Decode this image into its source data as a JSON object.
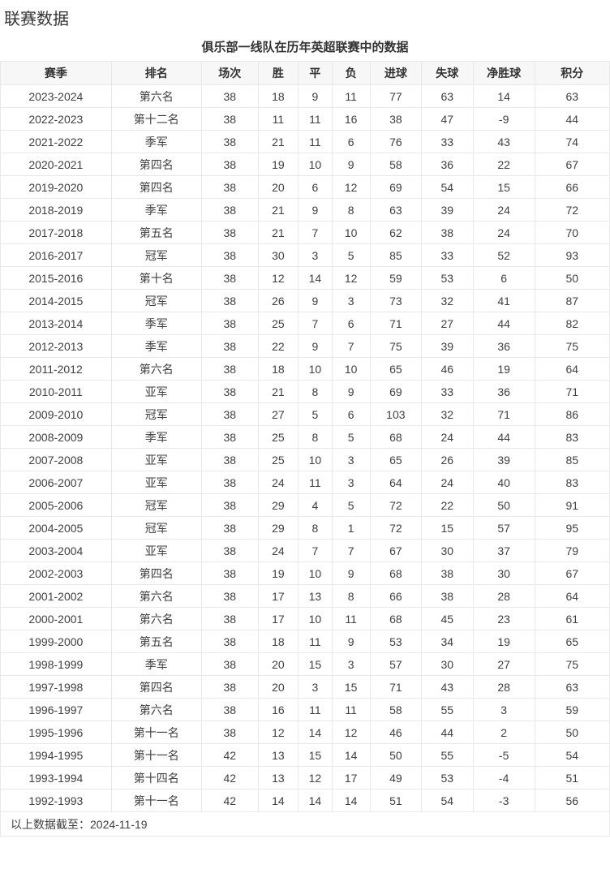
{
  "page": {
    "title": "联赛数据"
  },
  "table": {
    "caption": "俱乐部一线队在历年英超联赛中的数据",
    "columns": [
      "赛季",
      "排名",
      "场次",
      "胜",
      "平",
      "负",
      "进球",
      "失球",
      "净胜球",
      "积分"
    ],
    "rows": [
      [
        "2023-2024",
        "第六名",
        "38",
        "18",
        "9",
        "11",
        "77",
        "63",
        "14",
        "63"
      ],
      [
        "2022-2023",
        "第十二名",
        "38",
        "11",
        "11",
        "16",
        "38",
        "47",
        "-9",
        "44"
      ],
      [
        "2021-2022",
        "季军",
        "38",
        "21",
        "11",
        "6",
        "76",
        "33",
        "43",
        "74"
      ],
      [
        "2020-2021",
        "第四名",
        "38",
        "19",
        "10",
        "9",
        "58",
        "36",
        "22",
        "67"
      ],
      [
        "2019-2020",
        "第四名",
        "38",
        "20",
        "6",
        "12",
        "69",
        "54",
        "15",
        "66"
      ],
      [
        "2018-2019",
        "季军",
        "38",
        "21",
        "9",
        "8",
        "63",
        "39",
        "24",
        "72"
      ],
      [
        "2017-2018",
        "第五名",
        "38",
        "21",
        "7",
        "10",
        "62",
        "38",
        "24",
        "70"
      ],
      [
        "2016-2017",
        "冠军",
        "38",
        "30",
        "3",
        "5",
        "85",
        "33",
        "52",
        "93"
      ],
      [
        "2015-2016",
        "第十名",
        "38",
        "12",
        "14",
        "12",
        "59",
        "53",
        "6",
        "50"
      ],
      [
        "2014-2015",
        "冠军",
        "38",
        "26",
        "9",
        "3",
        "73",
        "32",
        "41",
        "87"
      ],
      [
        "2013-2014",
        "季军",
        "38",
        "25",
        "7",
        "6",
        "71",
        "27",
        "44",
        "82"
      ],
      [
        "2012-2013",
        "季军",
        "38",
        "22",
        "9",
        "7",
        "75",
        "39",
        "36",
        "75"
      ],
      [
        "2011-2012",
        "第六名",
        "38",
        "18",
        "10",
        "10",
        "65",
        "46",
        "19",
        "64"
      ],
      [
        "2010-2011",
        "亚军",
        "38",
        "21",
        "8",
        "9",
        "69",
        "33",
        "36",
        "71"
      ],
      [
        "2009-2010",
        "冠军",
        "38",
        "27",
        "5",
        "6",
        "103",
        "32",
        "71",
        "86"
      ],
      [
        "2008-2009",
        "季军",
        "38",
        "25",
        "8",
        "5",
        "68",
        "24",
        "44",
        "83"
      ],
      [
        "2007-2008",
        "亚军",
        "38",
        "25",
        "10",
        "3",
        "65",
        "26",
        "39",
        "85"
      ],
      [
        "2006-2007",
        "亚军",
        "38",
        "24",
        "11",
        "3",
        "64",
        "24",
        "40",
        "83"
      ],
      [
        "2005-2006",
        "冠军",
        "38",
        "29",
        "4",
        "5",
        "72",
        "22",
        "50",
        "91"
      ],
      [
        "2004-2005",
        "冠军",
        "38",
        "29",
        "8",
        "1",
        "72",
        "15",
        "57",
        "95"
      ],
      [
        "2003-2004",
        "亚军",
        "38",
        "24",
        "7",
        "7",
        "67",
        "30",
        "37",
        "79"
      ],
      [
        "2002-2003",
        "第四名",
        "38",
        "19",
        "10",
        "9",
        "68",
        "38",
        "30",
        "67"
      ],
      [
        "2001-2002",
        "第六名",
        "38",
        "17",
        "13",
        "8",
        "66",
        "38",
        "28",
        "64"
      ],
      [
        "2000-2001",
        "第六名",
        "38",
        "17",
        "10",
        "11",
        "68",
        "45",
        "23",
        "61"
      ],
      [
        "1999-2000",
        "第五名",
        "38",
        "18",
        "11",
        "9",
        "53",
        "34",
        "19",
        "65"
      ],
      [
        "1998-1999",
        "季军",
        "38",
        "20",
        "15",
        "3",
        "57",
        "30",
        "27",
        "75"
      ],
      [
        "1997-1998",
        "第四名",
        "38",
        "20",
        "3",
        "15",
        "71",
        "43",
        "28",
        "63"
      ],
      [
        "1996-1997",
        "第六名",
        "38",
        "16",
        "11",
        "11",
        "58",
        "55",
        "3",
        "59"
      ],
      [
        "1995-1996",
        "第十一名",
        "38",
        "12",
        "14",
        "12",
        "46",
        "44",
        "2",
        "50"
      ],
      [
        "1994-1995",
        "第十一名",
        "42",
        "13",
        "15",
        "14",
        "50",
        "55",
        "-5",
        "54"
      ],
      [
        "1993-1994",
        "第十四名",
        "42",
        "13",
        "12",
        "17",
        "49",
        "53",
        "-4",
        "51"
      ],
      [
        "1992-1993",
        "第十一名",
        "42",
        "14",
        "14",
        "14",
        "51",
        "54",
        "-3",
        "56"
      ]
    ],
    "footer_note": "以上数据截至：2024-11-19"
  },
  "colors": {
    "header_background": "#f7f7f7",
    "border": "#e8e8e8",
    "heading_text": "#333333",
    "body_text": "#404040"
  }
}
